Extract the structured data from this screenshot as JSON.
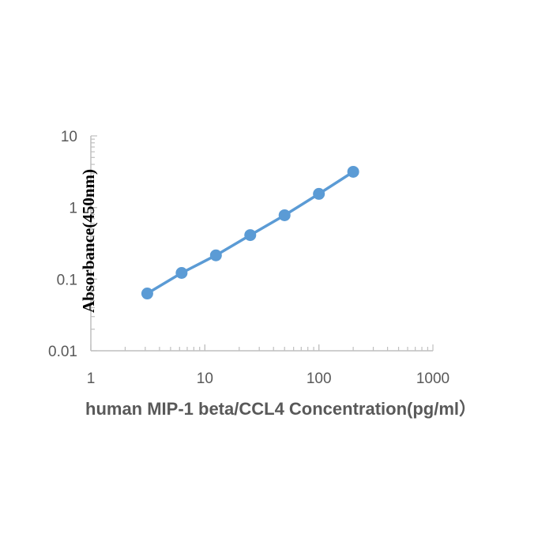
{
  "chart_data": {
    "type": "line",
    "title": "",
    "xlabel": "human MIP-1 beta/CCL4 Concentration(pg/ml）",
    "ylabel": "Absorbance(450nm)",
    "x_scale": "log",
    "y_scale": "log",
    "xlim": [
      1,
      1000
    ],
    "ylim": [
      0.01,
      10
    ],
    "x_ticks": [
      "1",
      "10",
      "100",
      "1000"
    ],
    "y_ticks": [
      "10",
      "1",
      "0.1",
      "0.01"
    ],
    "grid": false,
    "legend": "none",
    "series": [
      {
        "x": [
          3.125,
          6.25,
          12.5,
          25,
          50,
          100,
          200
        ],
        "y": [
          0.063,
          0.122,
          0.215,
          0.412,
          0.78,
          1.55,
          3.15
        ]
      }
    ],
    "colors": {
      "series": "#5B9BD5",
      "axis": "#BFBFBF"
    }
  }
}
